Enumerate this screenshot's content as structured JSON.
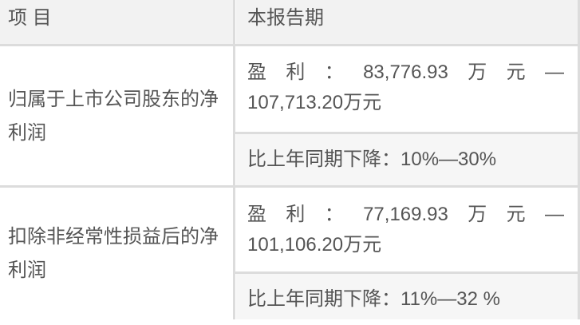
{
  "header": {
    "col1": "项 目",
    "col2": "本报告期"
  },
  "rows": [
    {
      "item": "归属于上市公司股东的净利润",
      "profit_label": [
        "盈",
        "利",
        "：",
        "83,776.93",
        "万",
        "元",
        "—"
      ],
      "profit_line2": "107,713.20万元",
      "change": "比上年同期下降：10%—30%"
    },
    {
      "item": "扣除非经常性损益后的净利润",
      "profit_label": [
        "盈",
        "利",
        "：",
        "77,169.93",
        "万",
        "元",
        "—"
      ],
      "profit_line2": "101,106.20万元",
      "change": "比上年同期下降：11%—32 %"
    }
  ]
}
